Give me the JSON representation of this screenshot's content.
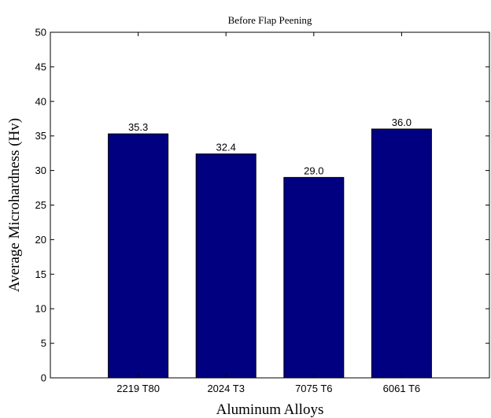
{
  "chart_data": {
    "type": "bar",
    "title": "Before Flap Peening",
    "xlabel": "Aluminum Alloys",
    "ylabel": "Average Microhardness (Hv)",
    "categories": [
      "2219 T80",
      "2024 T3",
      "7075 T6",
      "6061 T6"
    ],
    "values": [
      35.3,
      32.4,
      29.0,
      36.0
    ],
    "value_labels": [
      "35.3",
      "32.4",
      "29.0",
      "36.0"
    ],
    "ylim": [
      0,
      50
    ],
    "yticks": [
      0,
      5,
      10,
      15,
      20,
      25,
      30,
      35,
      40,
      45,
      50
    ],
    "ytick_labels": [
      "0",
      "5",
      "10",
      "15",
      "20",
      "25",
      "30",
      "35",
      "40",
      "45",
      "50"
    ],
    "grid": false,
    "colors": {
      "bar_fill": "#000080",
      "bar_stroke": "#000000",
      "axis": "#000000"
    }
  }
}
